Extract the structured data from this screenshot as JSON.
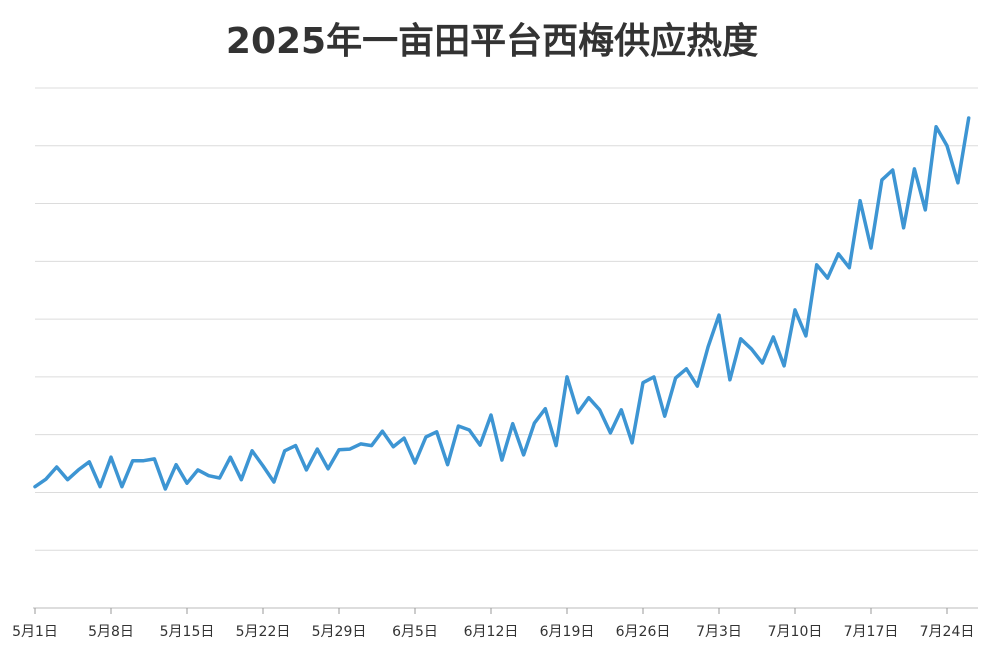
{
  "chart_data": {
    "type": "line",
    "title": "2025年一亩田平台西梅供应热度",
    "categories": [
      "5月1日",
      null,
      null,
      null,
      null,
      null,
      null,
      "5月8日",
      null,
      null,
      null,
      null,
      null,
      null,
      "5月15日",
      null,
      null,
      null,
      null,
      null,
      null,
      "5月22日",
      null,
      null,
      null,
      null,
      null,
      null,
      "5月29日",
      null,
      null,
      null,
      null,
      null,
      null,
      "6月5日",
      null,
      null,
      null,
      null,
      null,
      null,
      "6月12日",
      null,
      null,
      null,
      null,
      null,
      null,
      "6月19日",
      null,
      null,
      null,
      null,
      null,
      null,
      "6月26日",
      null,
      null,
      null,
      null,
      null,
      null,
      "7月3日",
      null,
      null,
      null,
      null,
      null,
      null,
      "7月10日",
      null,
      null,
      null,
      null,
      null,
      null,
      "7月17日",
      null,
      null,
      null,
      null,
      null,
      null,
      "7月24日",
      null,
      null
    ],
    "values": [
      2.1,
      2.23,
      2.44,
      2.22,
      2.39,
      2.53,
      2.1,
      2.61,
      2.1,
      2.55,
      2.55,
      2.58,
      2.06,
      2.48,
      2.16,
      2.39,
      2.29,
      2.25,
      2.61,
      2.22,
      2.72,
      2.46,
      2.18,
      2.72,
      2.81,
      2.39,
      2.75,
      2.41,
      2.74,
      2.75,
      2.84,
      2.81,
      3.06,
      2.79,
      2.94,
      2.51,
      2.96,
      3.05,
      2.48,
      3.15,
      3.08,
      2.82,
      3.34,
      2.56,
      3.19,
      2.65,
      3.2,
      3.45,
      2.81,
      4.0,
      3.38,
      3.64,
      3.43,
      3.03,
      3.43,
      2.86,
      3.9,
      4.0,
      3.32,
      3.98,
      4.14,
      3.84,
      4.52,
      5.07,
      3.95,
      4.66,
      4.48,
      4.24,
      4.69,
      4.19,
      5.16,
      4.71,
      5.94,
      5.71,
      6.13,
      5.89,
      7.05,
      6.23,
      7.41,
      7.58,
      6.58,
      7.6,
      6.89,
      8.33,
      8.0,
      7.36,
      8.48
    ],
    "color": "#3d95d3",
    "ylim": [
      0,
      9
    ],
    "yticks": [
      1,
      2,
      3,
      4,
      5,
      6,
      7,
      8,
      9
    ],
    "grid": true
  }
}
